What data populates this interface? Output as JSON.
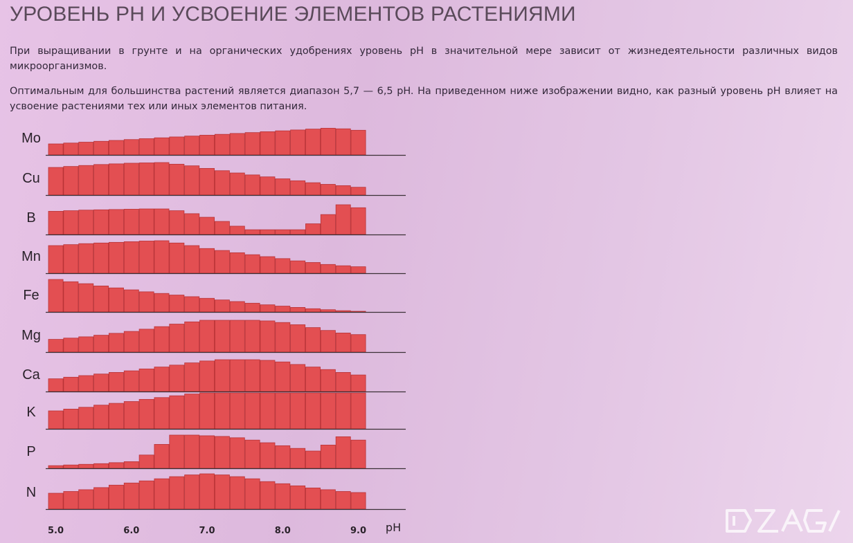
{
  "title": "УРОВЕНЬ РН И УСВОЕНИЕ ЭЛЕМЕНТОВ РАСТЕНИЯМИ",
  "paragraphs": [
    "При выращивании в грунте и на органических удобрениях уровень pH в значительной мере зависит от жизнедеятельности различных видов микроорганизмов.",
    "Оптимальным для большинства растений является диапазон 5,7 — 6,5 pH. На приведенном ниже изображении видно, как разный уровень pH влияет на усвоение растениями тех или иных элементов питания."
  ],
  "colors": {
    "bar_fill": "#e34f52",
    "bar_stroke": "#b83236",
    "baseline": "#3a3035"
  },
  "chart_data": {
    "type": "bar",
    "x_unit": "pH",
    "x_ticks": [
      "5.0",
      "6.0",
      "7.0",
      "8.0",
      "9.0"
    ],
    "x": [
      5.0,
      5.2,
      5.4,
      5.6,
      5.8,
      6.0,
      6.2,
      6.4,
      6.6,
      6.8,
      7.0,
      7.2,
      7.4,
      7.6,
      7.8,
      8.0,
      8.2,
      8.4,
      8.6,
      8.8,
      9.0
    ],
    "ylim": [
      0,
      1
    ],
    "series": [
      {
        "name": "Mo",
        "values": [
          0.38,
          0.41,
          0.44,
          0.47,
          0.5,
          0.53,
          0.56,
          0.59,
          0.62,
          0.65,
          0.68,
          0.71,
          0.74,
          0.77,
          0.8,
          0.83,
          0.86,
          0.89,
          0.92,
          0.9,
          0.85
        ]
      },
      {
        "name": "Cu",
        "values": [
          0.85,
          0.88,
          0.91,
          0.94,
          0.96,
          0.98,
          0.99,
          1.0,
          0.95,
          0.9,
          0.82,
          0.75,
          0.68,
          0.62,
          0.56,
          0.5,
          0.44,
          0.38,
          0.33,
          0.29,
          0.24
        ]
      },
      {
        "name": "B",
        "values": [
          0.78,
          0.8,
          0.82,
          0.83,
          0.84,
          0.85,
          0.86,
          0.86,
          0.8,
          0.7,
          0.58,
          0.44,
          0.28,
          0.16,
          0.16,
          0.16,
          0.16,
          0.36,
          0.67,
          1.0,
          0.9
        ]
      },
      {
        "name": "Mn",
        "values": [
          0.85,
          0.88,
          0.91,
          0.93,
          0.95,
          0.97,
          0.99,
          1.0,
          0.93,
          0.85,
          0.76,
          0.7,
          0.63,
          0.57,
          0.51,
          0.45,
          0.38,
          0.33,
          0.27,
          0.23,
          0.2
        ]
      },
      {
        "name": "Fe",
        "values": [
          1.0,
          0.93,
          0.87,
          0.8,
          0.74,
          0.68,
          0.62,
          0.57,
          0.52,
          0.47,
          0.42,
          0.37,
          0.32,
          0.27,
          0.22,
          0.18,
          0.14,
          0.1,
          0.07,
          0.04,
          0.02
        ]
      },
      {
        "name": "Mg",
        "values": [
          0.4,
          0.44,
          0.48,
          0.53,
          0.59,
          0.65,
          0.72,
          0.8,
          0.88,
          0.95,
          1.0,
          1.0,
          1.0,
          1.0,
          0.98,
          0.93,
          0.86,
          0.77,
          0.68,
          0.6,
          0.55
        ]
      },
      {
        "name": "Ca",
        "values": [
          0.4,
          0.45,
          0.5,
          0.55,
          0.6,
          0.65,
          0.71,
          0.77,
          0.83,
          0.9,
          0.96,
          1.0,
          1.0,
          1.0,
          0.98,
          0.93,
          0.85,
          0.77,
          0.69,
          0.6,
          0.52
        ]
      },
      {
        "name": "K",
        "values": [
          0.5,
          0.55,
          0.6,
          0.66,
          0.71,
          0.76,
          0.82,
          0.87,
          0.92,
          0.97,
          1.0,
          1.0,
          1.0,
          1.0,
          1.0,
          1.0,
          1.0,
          1.0,
          1.0,
          1.0,
          1.0
        ]
      },
      {
        "name": "P",
        "values": [
          0.08,
          0.1,
          0.12,
          0.14,
          0.17,
          0.2,
          0.4,
          0.72,
          1.0,
          1.0,
          0.98,
          0.96,
          0.92,
          0.85,
          0.77,
          0.68,
          0.6,
          0.52,
          0.7,
          0.95,
          0.85
        ]
      },
      {
        "name": "N",
        "values": [
          0.45,
          0.5,
          0.55,
          0.61,
          0.68,
          0.74,
          0.8,
          0.86,
          0.92,
          0.97,
          1.0,
          0.97,
          0.92,
          0.86,
          0.78,
          0.72,
          0.66,
          0.6,
          0.55,
          0.5,
          0.47
        ]
      }
    ]
  }
}
